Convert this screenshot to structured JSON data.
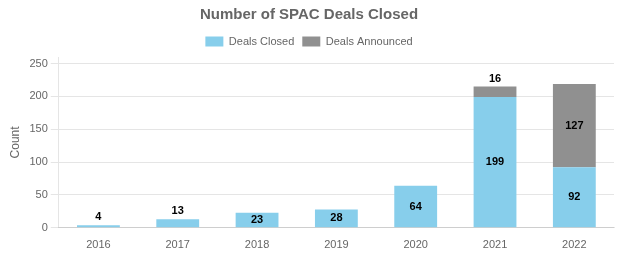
{
  "chart_data": {
    "type": "bar",
    "title": "Number of SPAC Deals Closed",
    "ylabel": "Count",
    "categories": [
      "2016",
      "2017",
      "2018",
      "2019",
      "2020",
      "2021",
      "2022"
    ],
    "series": [
      {
        "name": "Deals Closed",
        "color": "#87CEEB",
        "values": [
          4,
          13,
          23,
          28,
          64,
          199,
          92
        ]
      },
      {
        "name": "Deals Announced",
        "color": "#909090",
        "values": [
          0,
          0,
          0,
          0,
          0,
          16,
          127
        ]
      }
    ],
    "stacked": true,
    "ylim": [
      0,
      260
    ],
    "yticks": [
      0,
      50,
      100,
      150,
      200,
      250
    ],
    "grid": true,
    "legend": "top",
    "data_labels": true
  }
}
